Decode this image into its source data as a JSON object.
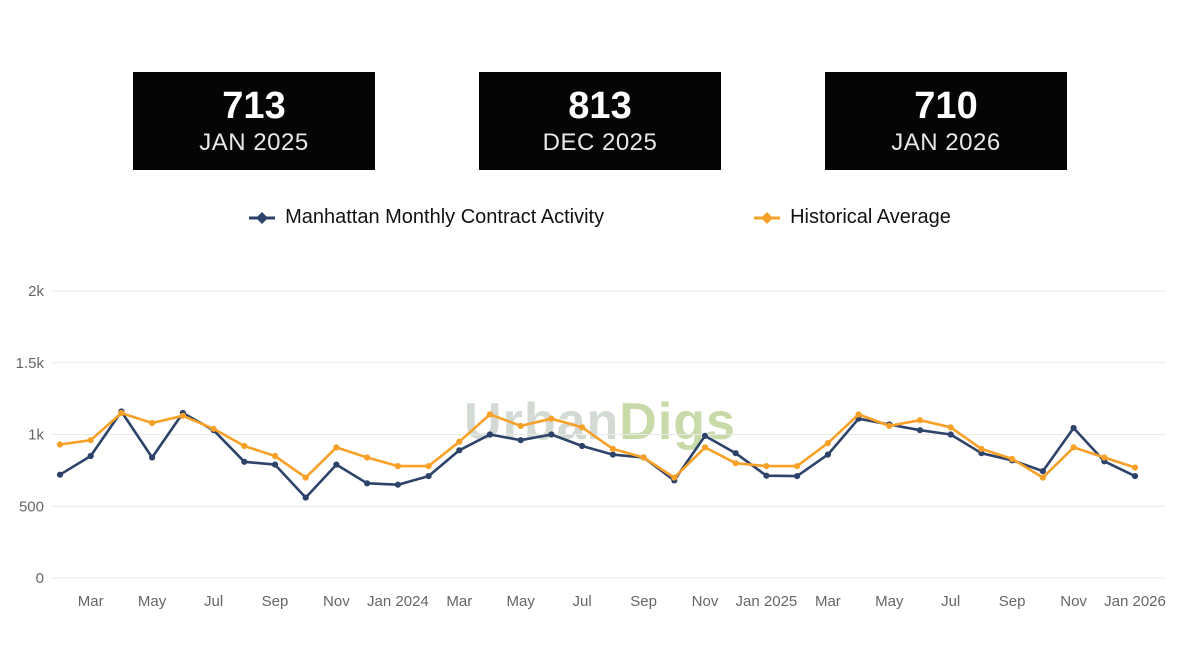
{
  "stat_boxes": [
    {
      "value": "713",
      "label": "JAN 2025"
    },
    {
      "value": "813",
      "label": "DEC 2025"
    },
    {
      "value": "710",
      "label": "JAN 2026"
    }
  ],
  "legend": {
    "items": [
      {
        "label": "Manhattan Monthly Contract Activity",
        "color": "#2e4369"
      },
      {
        "label": "Historical Average",
        "color": "#f7a128"
      }
    ]
  },
  "watermark": {
    "part1": "Urban",
    "part2": "Digs"
  },
  "chart_data": {
    "type": "line",
    "title": "",
    "xlabel": "",
    "ylabel": "",
    "ylim": [
      0,
      2000
    ],
    "grid": true,
    "legend_position": "top",
    "x": [
      "Feb 2023",
      "Mar 2023",
      "Apr 2023",
      "May 2023",
      "Jun 2023",
      "Jul 2023",
      "Aug 2023",
      "Sep 2023",
      "Oct 2023",
      "Nov 2023",
      "Dec 2023",
      "Jan 2024",
      "Feb 2024",
      "Mar 2024",
      "Apr 2024",
      "May 2024",
      "Jun 2024",
      "Jul 2024",
      "Aug 2024",
      "Sep 2024",
      "Oct 2024",
      "Nov 2024",
      "Dec 2024",
      "Jan 2025",
      "Feb 2025",
      "Mar 2025",
      "Apr 2025",
      "May 2025",
      "Jun 2025",
      "Jul 2025",
      "Aug 2025",
      "Sep 2025",
      "Oct 2025",
      "Nov 2025",
      "Dec 2025",
      "Jan 2026"
    ],
    "xtick_labels": [
      "Mar",
      "May",
      "Jul",
      "Sep",
      "Nov",
      "Jan 2024",
      "Mar",
      "May",
      "Jul",
      "Sep",
      "Nov",
      "Jan 2025",
      "Mar",
      "May",
      "Jul",
      "Sep",
      "Nov",
      "Jan 2026"
    ],
    "ytick_values": [
      0,
      500,
      1000,
      1500,
      2000
    ],
    "ytick_labels": [
      "0",
      "500",
      "1k",
      "1.5k",
      "2k"
    ],
    "series": [
      {
        "name": "Manhattan Monthly Contract Activity",
        "color": "#2e4369",
        "values": [
          720,
          850,
          1160,
          840,
          1150,
          1030,
          810,
          790,
          560,
          790,
          660,
          650,
          710,
          890,
          1000,
          960,
          1000,
          920,
          860,
          840,
          680,
          990,
          870,
          713,
          710,
          860,
          1110,
          1070,
          1030,
          1000,
          870,
          820,
          745,
          1045,
          813,
          710
        ]
      },
      {
        "name": "Historical Average",
        "color": "#f7a128",
        "values": [
          930,
          960,
          1150,
          1080,
          1130,
          1040,
          920,
          850,
          700,
          910,
          840,
          780,
          780,
          950,
          1140,
          1060,
          1110,
          1050,
          900,
          840,
          700,
          910,
          800,
          780,
          780,
          940,
          1140,
          1060,
          1100,
          1050,
          900,
          830,
          700,
          910,
          840,
          770
        ]
      }
    ]
  }
}
